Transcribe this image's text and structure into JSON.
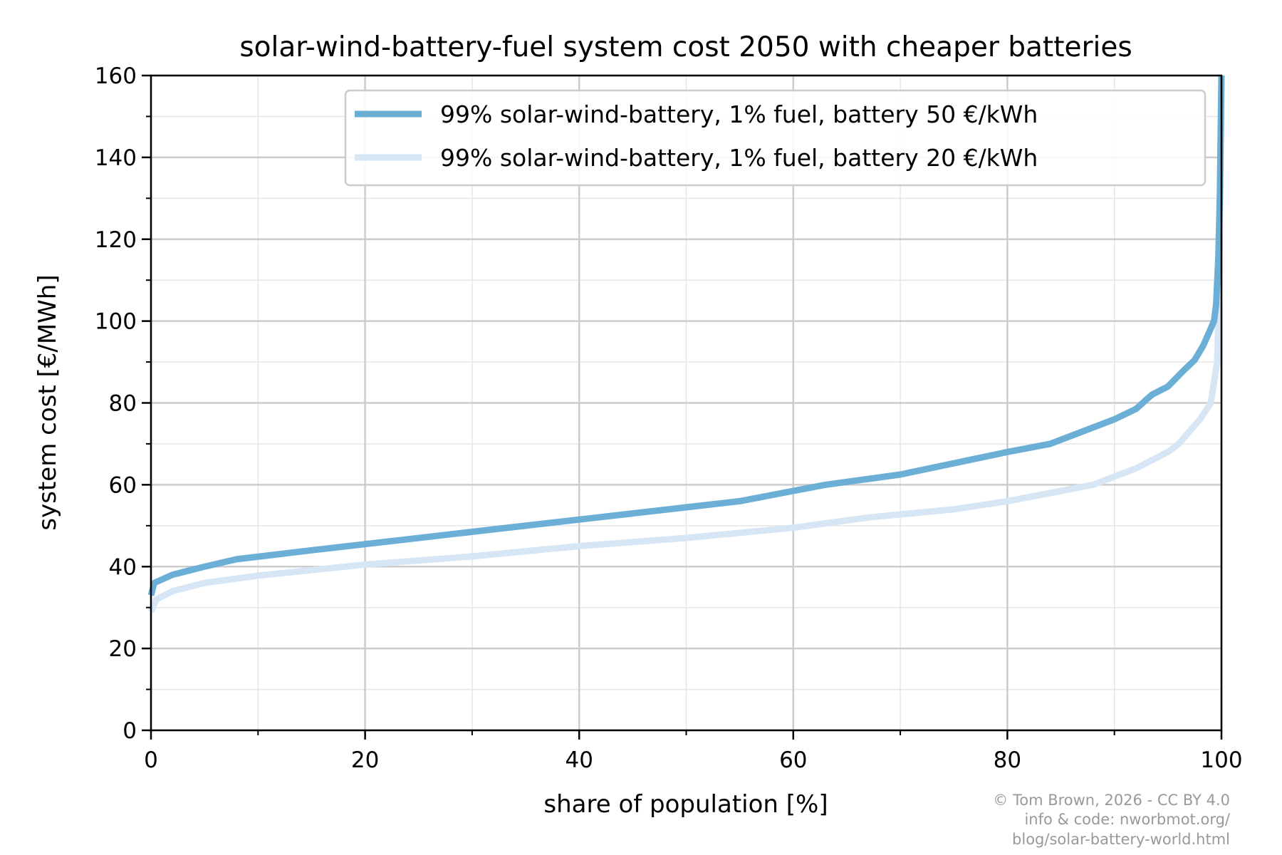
{
  "chart_data": {
    "type": "line",
    "title": "solar-wind-battery-fuel system cost 2050 with cheaper batteries",
    "xlabel": "share of population [%]",
    "ylabel": "system cost [€/MWh]",
    "xlim": [
      0,
      100
    ],
    "ylim": [
      0,
      160
    ],
    "xticks": [
      "0",
      "20",
      "40",
      "60",
      "80",
      "100"
    ],
    "yticks": [
      "0",
      "20",
      "40",
      "60",
      "80",
      "100",
      "120",
      "140",
      "160"
    ],
    "grid": true,
    "legend_position": "top-right",
    "series": [
      {
        "name": "99% solar-wind-battery, 1% fuel, battery 50 €/kWh",
        "color": "#6baed6",
        "x": [
          0,
          0.3,
          2,
          5,
          8,
          15,
          20,
          30,
          40,
          50,
          55,
          60,
          63,
          70,
          80,
          84,
          86,
          90,
          92,
          93.5,
          95,
          96.5,
          97.5,
          98.3,
          98.8,
          99.3,
          99.5,
          99.7,
          99.85,
          100
        ],
        "y": [
          33,
          36,
          38,
          40,
          41.8,
          44,
          45.5,
          48.5,
          51.5,
          54.5,
          56,
          58.5,
          60,
          62.5,
          68,
          70,
          72,
          76,
          78.5,
          82,
          84,
          88,
          90.5,
          94,
          97,
          100,
          104,
          115,
          130,
          160
        ]
      },
      {
        "name": "99% solar-wind-battery, 1% fuel, battery 20 €/kWh",
        "color": "#d6e6f4",
        "x": [
          0,
          0.5,
          2,
          5,
          10,
          20,
          30,
          40,
          50,
          60,
          67,
          75,
          80,
          88,
          92,
          95,
          96,
          97,
          98,
          99,
          99.3,
          99.6,
          99.8,
          100
        ],
        "y": [
          29,
          32,
          34,
          36,
          37.8,
          40.5,
          42.5,
          45,
          47,
          49.5,
          52,
          54,
          56,
          60,
          64,
          68,
          70,
          73,
          76,
          80,
          85,
          90,
          110,
          160
        ]
      }
    ]
  },
  "credit": {
    "line1": "© Tom Brown, 2026 - CC BY 4.0",
    "line2": "info & code: nworbmot.org/",
    "line3": "blog/solar-battery-world.html"
  }
}
